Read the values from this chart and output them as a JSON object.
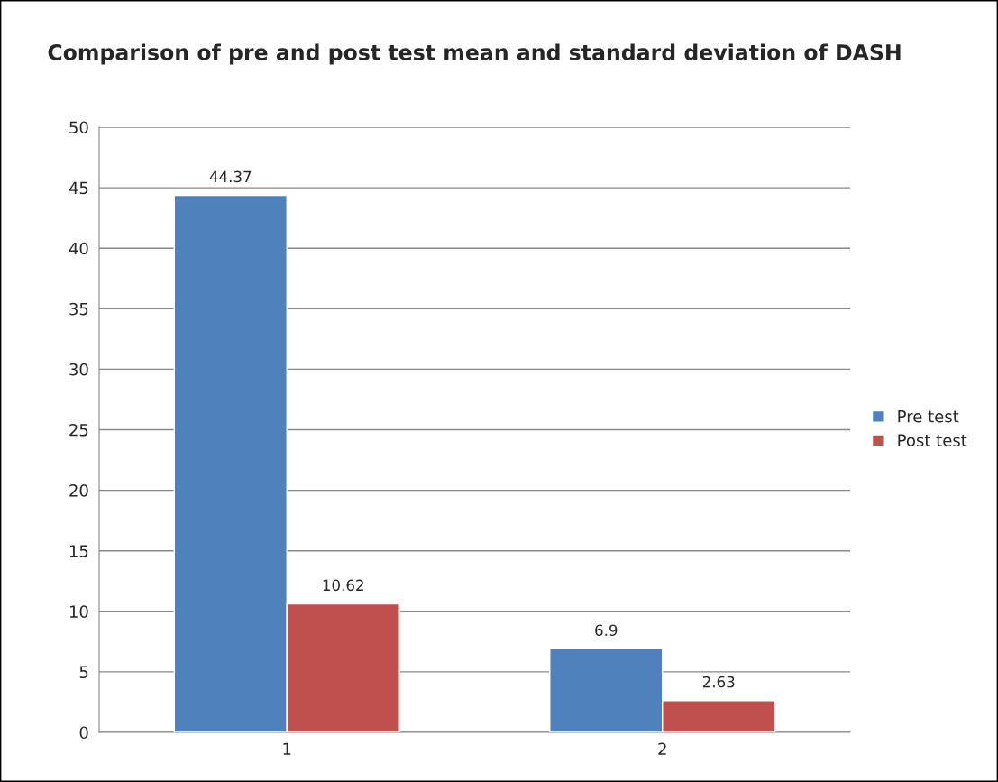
{
  "chart_data": {
    "type": "bar",
    "title": "Comparison of pre and post test mean and standard deviation of DASH",
    "categories": [
      "1",
      "2"
    ],
    "series": [
      {
        "name": "Pre test",
        "color": "#4f81bd",
        "values": [
          44.37,
          6.9
        ]
      },
      {
        "name": "Post test",
        "color": "#c0504d",
        "values": [
          10.62,
          2.63
        ]
      }
    ],
    "ylim": [
      0,
      50
    ],
    "yticks": [
      0,
      5,
      10,
      15,
      20,
      25,
      30,
      35,
      40,
      45,
      50
    ],
    "grid": "y",
    "legend": "right",
    "data_labels": true
  }
}
